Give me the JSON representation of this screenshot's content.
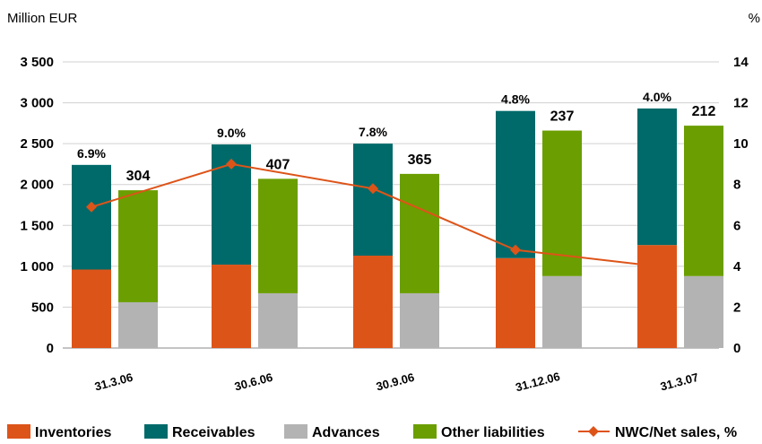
{
  "chart_data": {
    "type": "bar",
    "left_axis_unit": "Million EUR",
    "right_axis_unit": "%",
    "categories": [
      "31.3.06",
      "30.6.06",
      "30.9.06",
      "31.12.06",
      "31.3.07"
    ],
    "y_ticks": [
      "0",
      "500",
      "1 000",
      "1 500",
      "2 000",
      "2 500",
      "3 000",
      "3 500"
    ],
    "y_tick_values": [
      0,
      500,
      1000,
      1500,
      2000,
      2500,
      3000,
      3500
    ],
    "y2_ticks": [
      "0",
      "2",
      "4",
      "6",
      "8",
      "10",
      "12",
      "14"
    ],
    "y2_tick_values": [
      0,
      2,
      4,
      6,
      8,
      10,
      12,
      14
    ],
    "ylim": [
      0,
      3500
    ],
    "y2lim": [
      0,
      14
    ],
    "grid": true,
    "legend_position": "bottom",
    "series": [
      {
        "name": "Inventories",
        "stack": "assets",
        "color": "#dd5419",
        "values": [
          960,
          1020,
          1130,
          1100,
          1260
        ]
      },
      {
        "name": "Receivables",
        "stack": "assets",
        "color": "#006a6a",
        "values": [
          1280,
          1470,
          1370,
          1800,
          1670
        ]
      },
      {
        "name": "Advances",
        "stack": "liabilities",
        "color": "#b3b3b3",
        "values": [
          560,
          670,
          670,
          880,
          880
        ]
      },
      {
        "name": "Other liabilities",
        "stack": "liabilities",
        "color": "#6b9e00",
        "values": [
          1370,
          1400,
          1460,
          1780,
          1840
        ]
      },
      {
        "name": "NWC/Net sales, %",
        "type": "line",
        "axis": "right",
        "color": "#dd5419",
        "values": [
          6.9,
          9.0,
          7.8,
          4.8,
          4.0
        ]
      }
    ],
    "pct_labels": [
      "6.9%",
      "9.0%",
      "7.8%",
      "4.8%",
      "4.0%"
    ],
    "nwc_labels": [
      "304",
      "407",
      "365",
      "237",
      "212"
    ]
  }
}
